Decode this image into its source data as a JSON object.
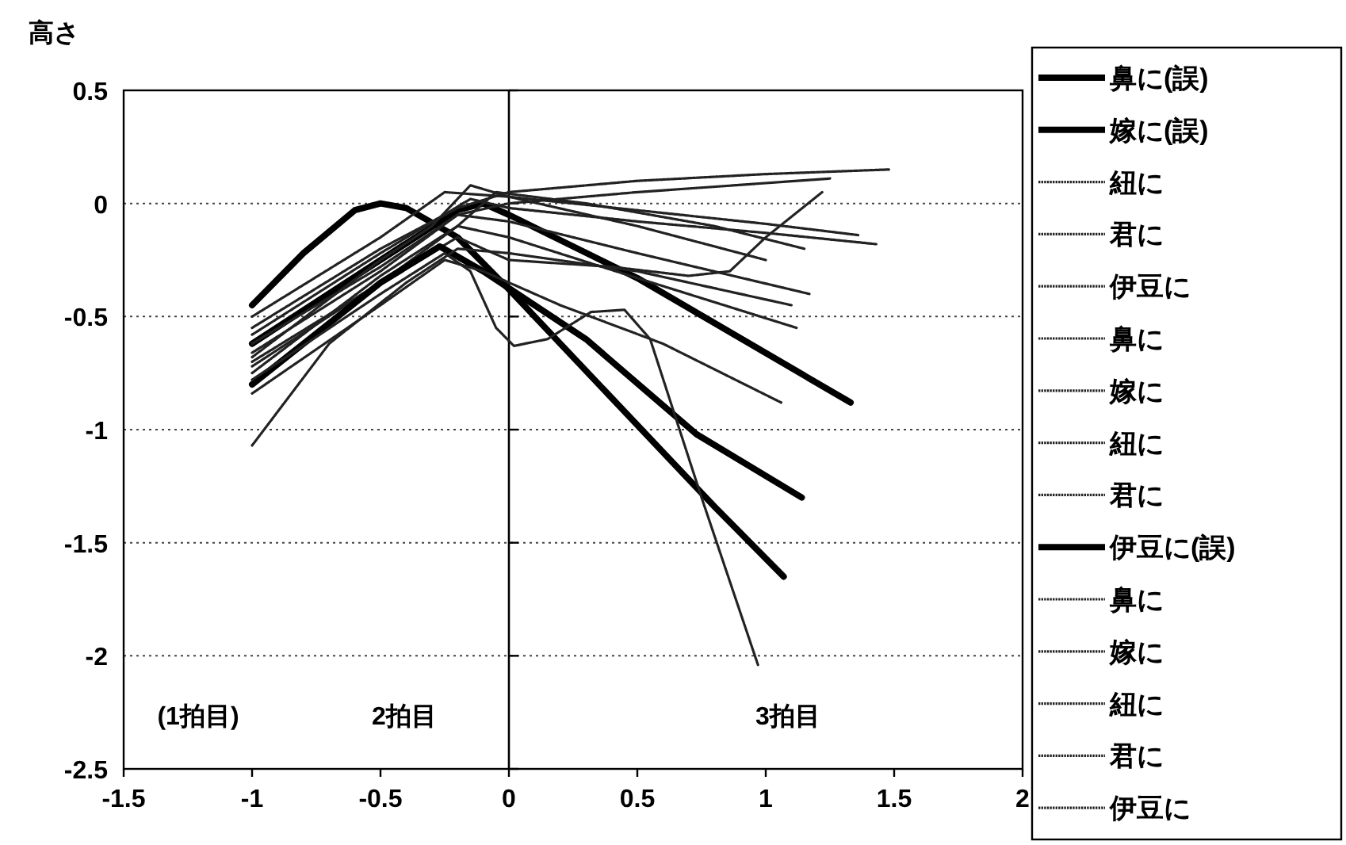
{
  "chart_data": {
    "type": "line",
    "ylabel": "高さ",
    "xlim": [
      -1.5,
      2
    ],
    "ylim": [
      -2.5,
      0.5
    ],
    "xticks": [
      -1.5,
      -1,
      -0.5,
      0,
      0.5,
      1,
      1.5,
      2
    ],
    "yticks": [
      -2.5,
      -2,
      -1.5,
      -1,
      -0.5,
      0,
      0.5
    ],
    "grid": "y",
    "legend": "right",
    "annotations": [
      "(1拍目)",
      "2拍目",
      "3拍目"
    ],
    "series": [
      {
        "name": "鼻に(誤)",
        "color": "#000000",
        "line_style": "solid",
        "x": [
          -1,
          -0.8,
          -0.6,
          -0.5,
          -0.4,
          -0.2,
          0,
          0.4,
          0.8,
          1.07
        ],
        "values": [
          -0.45,
          -0.22,
          -0.03,
          0,
          -0.02,
          -0.15,
          -0.38,
          -0.86,
          -1.34,
          -1.65
        ]
      },
      {
        "name": "嫁に(誤)",
        "color": "#000000",
        "line_style": "solid",
        "x": [
          -1,
          -0.5,
          -0.2,
          -0.1,
          0,
          0.5,
          1.33
        ],
        "values": [
          -0.62,
          -0.25,
          -0.03,
          0,
          -0.05,
          -0.33,
          -0.88
        ]
      },
      {
        "name": "紐に",
        "color": "#222222",
        "line_style": "dotted",
        "x": [
          -1,
          -0.5,
          -0.2,
          0,
          0.5,
          1,
          1.48
        ],
        "values": [
          -0.55,
          -0.2,
          -0.02,
          0.05,
          0.1,
          0.13,
          0.15
        ]
      },
      {
        "name": "君に",
        "color": "#222222",
        "line_style": "dotted",
        "x": [
          -1,
          -0.5,
          -0.2,
          0,
          0.5,
          1,
          1.25
        ],
        "values": [
          -0.62,
          -0.28,
          -0.05,
          0,
          0.05,
          0.09,
          0.11
        ]
      },
      {
        "name": "伊豆に",
        "color": "#222222",
        "line_style": "dotted",
        "x": [
          -1,
          -0.5,
          -0.2,
          0,
          0.4,
          0.7,
          0.86,
          1,
          1.22
        ],
        "values": [
          -0.7,
          -0.35,
          -0.15,
          -0.25,
          -0.28,
          -0.32,
          -0.3,
          -0.15,
          0.05
        ]
      },
      {
        "name": "鼻に",
        "color": "#222222",
        "line_style": "dotted",
        "x": [
          -1,
          -0.5,
          -0.25,
          0,
          0.5,
          1,
          1.36
        ],
        "values": [
          -0.5,
          -0.15,
          0.05,
          0.03,
          -0.03,
          -0.09,
          -0.14
        ]
      },
      {
        "name": "嫁に",
        "color": "#222222",
        "line_style": "dotted",
        "x": [
          -1,
          -0.5,
          -0.15,
          0,
          0.5,
          1,
          1.43
        ],
        "values": [
          -0.58,
          -0.22,
          0.02,
          -0.02,
          -0.08,
          -0.13,
          -0.18
        ]
      },
      {
        "name": "紐に",
        "color": "#222222",
        "line_style": "dotted",
        "x": [
          -1,
          -0.5,
          -0.2,
          0,
          0.5,
          1.17
        ],
        "values": [
          -0.66,
          -0.3,
          -0.05,
          -0.08,
          -0.22,
          -0.4
        ]
      },
      {
        "name": "君に",
        "color": "#222222",
        "line_style": "dotted",
        "x": [
          -1,
          -0.5,
          -0.2,
          0,
          0.5,
          1.12
        ],
        "values": [
          -0.72,
          -0.35,
          -0.1,
          -0.15,
          -0.33,
          -0.55
        ]
      },
      {
        "name": "伊豆に(誤)",
        "color": "#000000",
        "line_style": "solid",
        "x": [
          -1,
          -0.5,
          -0.27,
          -0.1,
          0.3,
          0.73,
          1.14
        ],
        "values": [
          -0.8,
          -0.35,
          -0.19,
          -0.3,
          -0.6,
          -1.02,
          -1.3
        ]
      },
      {
        "name": "鼻に",
        "color": "#222222",
        "line_style": "dotted",
        "x": [
          -1,
          -0.5,
          -0.25,
          -0.1,
          0.2,
          0.6,
          1.06
        ],
        "values": [
          -0.84,
          -0.45,
          -0.25,
          -0.3,
          -0.45,
          -0.62,
          -0.88
        ]
      },
      {
        "name": "嫁に",
        "color": "#222222",
        "line_style": "dotted",
        "x": [
          -1,
          -0.5,
          -0.25,
          -0.15,
          -0.05,
          0.02,
          0.15,
          0.32,
          0.45,
          0.55,
          0.75,
          0.97
        ],
        "values": [
          -0.78,
          -0.4,
          -0.22,
          -0.3,
          -0.55,
          -0.63,
          -0.6,
          -0.48,
          -0.47,
          -0.6,
          -1.3,
          -2.04
        ]
      },
      {
        "name": "紐に",
        "color": "#222222",
        "line_style": "dotted",
        "x": [
          -1,
          -0.7,
          -0.4,
          -0.2,
          0,
          0.5,
          1.1
        ],
        "values": [
          -1.07,
          -0.62,
          -0.35,
          -0.2,
          -0.22,
          -0.3,
          -0.45
        ]
      },
      {
        "name": "君に",
        "color": "#222222",
        "line_style": "dotted",
        "x": [
          -1,
          -0.5,
          -0.2,
          -0.05,
          0.3,
          0.8,
          1.15
        ],
        "values": [
          -0.75,
          -0.32,
          -0.1,
          0.05,
          0.0,
          -0.1,
          -0.2
        ]
      },
      {
        "name": "伊豆に",
        "color": "#222222",
        "line_style": "dotted",
        "x": [
          -1,
          -0.5,
          -0.3,
          -0.15,
          0,
          0.5,
          1
        ],
        "values": [
          -0.68,
          -0.25,
          -0.1,
          0.08,
          0.03,
          -0.1,
          -0.25
        ]
      }
    ]
  }
}
